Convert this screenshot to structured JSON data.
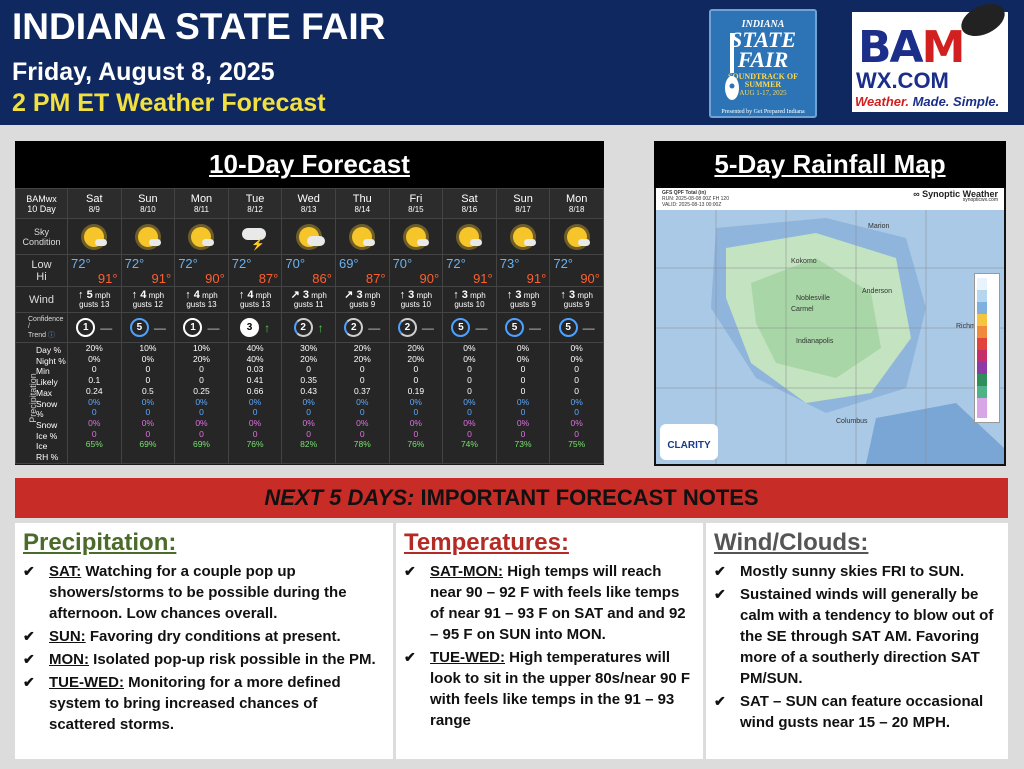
{
  "header": {
    "title": "INDIANA STATE FAIR",
    "date": "Friday, August 8, 2025",
    "subtitle": "2 PM ET Weather Forecast"
  },
  "isf_logo": {
    "indiana": "INDIANA",
    "state": "STATE",
    "fair": "FAIR",
    "soundtrack": "SOUNDTRACK OF SUMMER",
    "dates": "AUG 1-17, 2025",
    "presented": "Presented by Get Prepared Indiana"
  },
  "bam_logo": {
    "ba": "BA",
    "m": "M",
    "wx": "WX.COM",
    "tag_a": "Weather.",
    "tag_b": "Made. Simple."
  },
  "forecast": {
    "title": "10-Day Forecast",
    "corner_a": "BAMwx",
    "corner_b": "10 Day",
    "sky_label_a": "Sky",
    "sky_label_b": "Condition",
    "lowhi_a": "Low",
    "lowhi_b": "Hi",
    "wind_label": "Wind",
    "conf_label_a": "Confidence /",
    "conf_label_b": "Trend",
    "precip_side": "Precipitation",
    "precip_rows": [
      "Day %",
      "Night %",
      "Min",
      "Likely",
      "Max",
      "Snow %",
      "Snow",
      "Ice %",
      "Ice",
      "RH %"
    ],
    "days": [
      {
        "d": "Sat",
        "dt": "8/9",
        "sky": "sun",
        "low": "72°",
        "hi": "91°",
        "wind": "↑ 5",
        "wu": "mph",
        "gust": "gusts 13",
        "conf": "1",
        "conf_style": "plain",
        "trend": "—",
        "precip": [
          "20%",
          "0%",
          "0",
          "0.1",
          "0.24",
          "0%",
          "0",
          "0%",
          "0",
          "65%"
        ]
      },
      {
        "d": "Sun",
        "dt": "8/10",
        "sky": "sun",
        "low": "72°",
        "hi": "91°",
        "wind": "↑ 4",
        "wu": "mph",
        "gust": "gusts 12",
        "conf": "5",
        "conf_style": "b5",
        "trend": "—",
        "precip": [
          "10%",
          "0%",
          "0",
          "0",
          "0.5",
          "0%",
          "0",
          "0%",
          "0",
          "69%"
        ]
      },
      {
        "d": "Mon",
        "dt": "8/11",
        "sky": "sun",
        "low": "72°",
        "hi": "90°",
        "wind": "↑ 4",
        "wu": "mph",
        "gust": "gusts 13",
        "conf": "1",
        "conf_style": "plain",
        "trend": "—",
        "precip": [
          "10%",
          "20%",
          "0",
          "0",
          "0.25",
          "0%",
          "0",
          "0%",
          "0",
          "69%"
        ]
      },
      {
        "d": "Tue",
        "dt": "8/12",
        "sky": "storm",
        "low": "72°",
        "hi": "87°",
        "wind": "↑ 4",
        "wu": "mph",
        "gust": "gusts 13",
        "conf": "3",
        "conf_style": "o3",
        "trend": "↑",
        "precip": [
          "40%",
          "40%",
          "0.03",
          "0.41",
          "0.66",
          "0%",
          "0",
          "0%",
          "0",
          "76%"
        ]
      },
      {
        "d": "Wed",
        "dt": "8/13",
        "sky": "cloud",
        "low": "70°",
        "hi": "86°",
        "wind": "↗ 3",
        "wu": "mph",
        "gust": "gusts 11",
        "conf": "2",
        "conf_style": "b2",
        "trend": "↑",
        "precip": [
          "30%",
          "20%",
          "0",
          "0.35",
          "0.43",
          "0%",
          "0",
          "0%",
          "0",
          "82%"
        ]
      },
      {
        "d": "Thu",
        "dt": "8/14",
        "sky": "sun",
        "low": "69°",
        "hi": "87°",
        "wind": "↗ 3",
        "wu": "mph",
        "gust": "gusts 9",
        "conf": "2",
        "conf_style": "b2",
        "trend": "—",
        "precip": [
          "20%",
          "20%",
          "0",
          "0",
          "0.37",
          "0%",
          "0",
          "0%",
          "0",
          "78%"
        ]
      },
      {
        "d": "Fri",
        "dt": "8/15",
        "sky": "sun",
        "low": "70°",
        "hi": "90°",
        "wind": "↑ 3",
        "wu": "mph",
        "gust": "gusts 10",
        "conf": "2",
        "conf_style": "b2",
        "trend": "—",
        "precip": [
          "20%",
          "20%",
          "0",
          "0",
          "0.19",
          "0%",
          "0",
          "0%",
          "0",
          "76%"
        ]
      },
      {
        "d": "Sat",
        "dt": "8/16",
        "sky": "sun",
        "low": "72°",
        "hi": "91°",
        "wind": "↑ 3",
        "wu": "mph",
        "gust": "gusts 10",
        "conf": "5",
        "conf_style": "b5",
        "trend": "—",
        "precip": [
          "0%",
          "0%",
          "0",
          "0",
          "0",
          "0%",
          "0",
          "0%",
          "0",
          "74%"
        ]
      },
      {
        "d": "Sun",
        "dt": "8/17",
        "sky": "sun",
        "low": "73°",
        "hi": "91°",
        "wind": "↑ 3",
        "wu": "mph",
        "gust": "gusts 9",
        "conf": "5",
        "conf_style": "b5",
        "trend": "—",
        "precip": [
          "0%",
          "0%",
          "0",
          "0",
          "0",
          "0%",
          "0",
          "0%",
          "0",
          "73%"
        ]
      },
      {
        "d": "Mon",
        "dt": "8/18",
        "sky": "sun",
        "low": "72°",
        "hi": "90°",
        "wind": "↑ 3",
        "wu": "mph",
        "gust": "gusts 9",
        "conf": "5",
        "conf_style": "b5",
        "trend": "—",
        "precip": [
          "0%",
          "0%",
          "0",
          "0",
          "0",
          "0%",
          "0",
          "0%",
          "0",
          "75%"
        ]
      }
    ]
  },
  "rainfall": {
    "title": "5-Day Rainfall Map",
    "hdr_a": "GFS QPF Total (in)",
    "hdr_b": "RUN: 2025-08-08 00Z FH 120",
    "hdr_c": "VALID: 2025-08-13 00:00Z",
    "brand": "∞ Synoptic Weather",
    "brand_sub": "synopticwx.com",
    "cities": [
      "Kokomo",
      "Marion",
      "Anderson",
      "Noblesville",
      "Carmel",
      "Indianapolis",
      "Richmond",
      "Columbus"
    ],
    "clarity": "CLARITY"
  },
  "notes_bar": {
    "a": "NEXT 5 DAYS:",
    "b": " IMPORTANT FORECAST NOTES"
  },
  "precipitation": {
    "title": "Precipitation:",
    "items": [
      {
        "k": "SAT:",
        "t": " Watching for a couple pop up showers/storms to be possible during the afternoon. Low chances overall."
      },
      {
        "k": "SUN:",
        "t": " Favoring dry conditions at present."
      },
      {
        "k": "MON:",
        "t": " Isolated pop-up risk possible in the PM."
      },
      {
        "k": "TUE-WED:",
        "t": " Monitoring for a more defined system to bring increased chances of scattered storms."
      }
    ]
  },
  "temperatures": {
    "title": "Temperatures:",
    "items": [
      {
        "k": "SAT-MON:",
        "t": " High temps will reach near 90 – 92 F with feels like temps of near 91 – 93 F on SAT and and 92 – 95 F on SUN into MON."
      },
      {
        "k": "TUE-WED:",
        "t": " High temperatures will look to sit in the upper 80s/near 90 F with feels like temps in the 91 – 93 range"
      }
    ]
  },
  "wind_clouds": {
    "title": "Wind/Clouds:",
    "items": [
      {
        "k": "",
        "t": "Mostly sunny skies FRI to SUN."
      },
      {
        "k": "",
        "t": "Sustained winds will generally be calm with a tendency to blow out of the SE through SAT AM. Favoring more of a southerly direction SAT PM/SUN."
      },
      {
        "k": "",
        "t": "SAT – SUN can feature occasional wind gusts near 15 – 20 MPH."
      }
    ]
  }
}
